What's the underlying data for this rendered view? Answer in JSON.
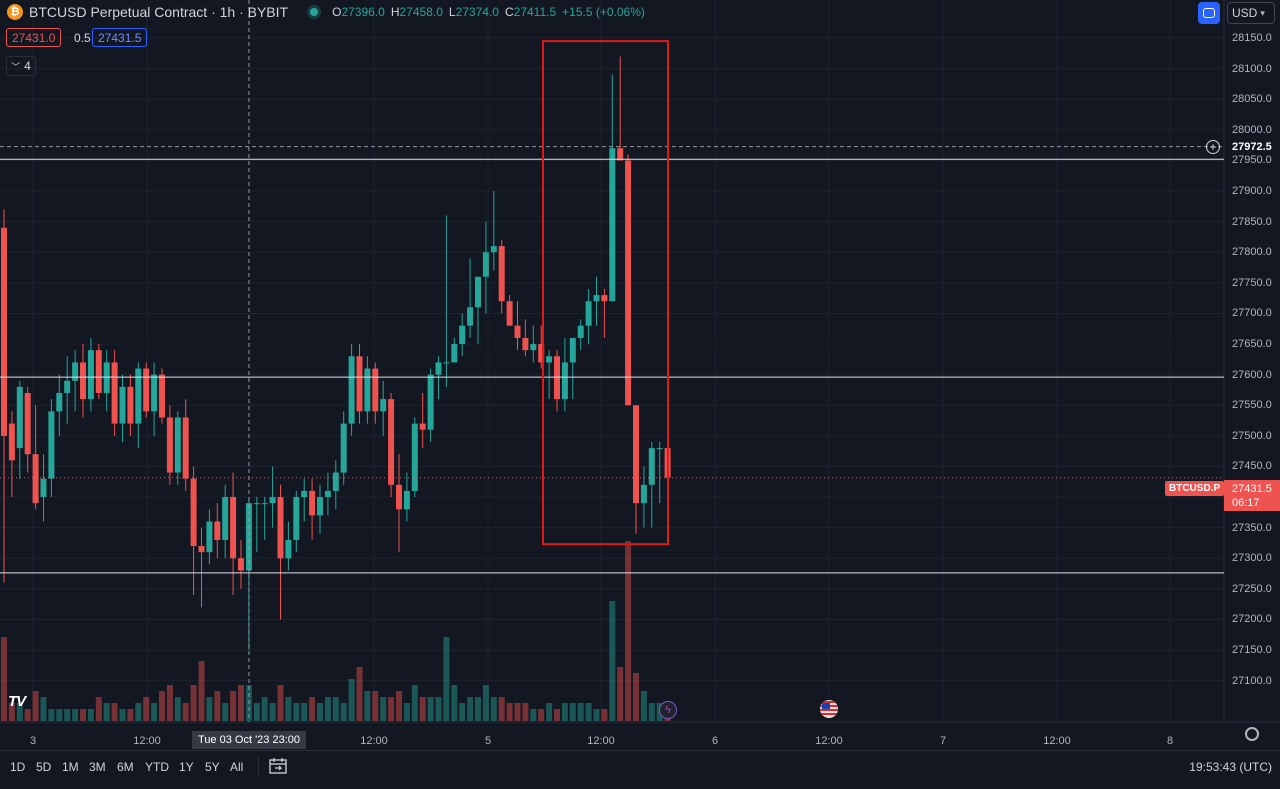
{
  "header": {
    "title": "BTCUSD Perpetual Contract · 1h · BYBIT",
    "ohlc": [
      {
        "k": "O",
        "v": "27396.0"
      },
      {
        "k": "H",
        "v": "27458.0"
      },
      {
        "k": "L",
        "v": "27374.0"
      },
      {
        "k": "C",
        "v": "27411.5"
      },
      {
        "k": "",
        "v": "+15.5 (+0.06%)"
      }
    ]
  },
  "trade": {
    "sell": "27431.0",
    "spread": "0.5",
    "buy": "27431.5"
  },
  "indicators_toggle": {
    "count": "4"
  },
  "currency": "USD",
  "price_axis": {
    "labels": [
      "28150.0",
      "28100.0",
      "28050.0",
      "28000.0",
      "27950.0",
      "27900.0",
      "27850.0",
      "27800.0",
      "27750.0",
      "27700.0",
      "27650.0",
      "27600.0",
      "27550.0",
      "27500.0",
      "27450.0",
      "27400.0",
      "27350.0",
      "27300.0",
      "27250.0",
      "27200.0",
      "27150.0",
      "27100.0"
    ]
  },
  "crosshair_price": "27972.5",
  "current_price": {
    "symbol": "BTCUSD.P",
    "price": "27431.5",
    "countdown": "06:17"
  },
  "time_axis": [
    {
      "label": "3",
      "hl": false
    },
    {
      "label": "12:00",
      "hl": false
    },
    {
      "label": "Tue 03 Oct '23   23:00",
      "hl": true
    },
    {
      "label": "12:00",
      "hl": false
    },
    {
      "label": "5",
      "hl": false
    },
    {
      "label": "12:00",
      "hl": false
    },
    {
      "label": "6",
      "hl": false
    },
    {
      "label": "12:00",
      "hl": false
    },
    {
      "label": "7",
      "hl": false
    },
    {
      "label": "12:00",
      "hl": false
    },
    {
      "label": "8",
      "hl": false
    }
  ],
  "ranges": [
    "1D",
    "5D",
    "1M",
    "3M",
    "6M",
    "YTD",
    "1Y",
    "5Y",
    "All"
  ],
  "clock": "19:53:43 (UTC)",
  "colors": {
    "up": "#26a69a",
    "down": "#ef5350",
    "bg": "#131722",
    "highlight_box": "#e01919"
  },
  "chart_data": {
    "type": "candlestick",
    "title": "BTCUSD Perpetual Contract · 1h · BYBIT",
    "ylim": [
      27070,
      28180
    ],
    "grid": true,
    "horizontal_lines": [
      27952,
      27596,
      27276
    ],
    "crosshair_price": 27972.5,
    "last_price": 27431.5,
    "highlight_range": {
      "price_top": 28145,
      "price_bottom": 27323
    },
    "candles": [
      [
        27840,
        27870,
        27260,
        27500,
        0.14
      ],
      [
        27520,
        27540,
        27400,
        27460,
        0.03
      ],
      [
        27480,
        27590,
        27430,
        27580,
        0.03
      ],
      [
        27570,
        27580,
        27440,
        27470,
        0.02
      ],
      [
        27470,
        27550,
        27380,
        27390,
        0.05
      ],
      [
        27400,
        27470,
        27360,
        27430,
        0.04
      ],
      [
        27430,
        27560,
        27400,
        27540,
        0.02
      ],
      [
        27540,
        27600,
        27500,
        27570,
        0.02
      ],
      [
        27570,
        27630,
        27520,
        27590,
        0.02
      ],
      [
        27590,
        27640,
        27540,
        27620,
        0.02
      ],
      [
        27620,
        27650,
        27530,
        27560,
        0.02
      ],
      [
        27560,
        27660,
        27540,
        27640,
        0.02
      ],
      [
        27640,
        27650,
        27560,
        27570,
        0.04
      ],
      [
        27570,
        27640,
        27540,
        27620,
        0.03
      ],
      [
        27620,
        27640,
        27500,
        27520,
        0.03
      ],
      [
        27520,
        27600,
        27490,
        27580,
        0.02
      ],
      [
        27580,
        27600,
        27500,
        27520,
        0.02
      ],
      [
        27520,
        27620,
        27480,
        27610,
        0.03
      ],
      [
        27610,
        27620,
        27530,
        27540,
        0.04
      ],
      [
        27540,
        27620,
        27500,
        27600,
        0.03
      ],
      [
        27600,
        27610,
        27520,
        27530,
        0.05
      ],
      [
        27530,
        27550,
        27420,
        27440,
        0.06
      ],
      [
        27440,
        27540,
        27420,
        27530,
        0.04
      ],
      [
        27530,
        27560,
        27410,
        27430,
        0.03
      ],
      [
        27430,
        27450,
        27240,
        27320,
        0.06
      ],
      [
        27320,
        27350,
        27220,
        27310,
        0.1
      ],
      [
        27310,
        27380,
        27290,
        27360,
        0.04
      ],
      [
        27360,
        27390,
        27300,
        27330,
        0.05
      ],
      [
        27330,
        27420,
        27300,
        27400,
        0.03
      ],
      [
        27400,
        27440,
        27240,
        27300,
        0.05
      ],
      [
        27300,
        27330,
        27250,
        27280,
        0.06
      ],
      [
        27280,
        27400,
        27150,
        27390,
        0.06
      ],
      [
        27390,
        27400,
        27310,
        27390,
        0.03
      ],
      [
        27390,
        27400,
        27330,
        27390,
        0.04
      ],
      [
        27390,
        27450,
        27350,
        27400,
        0.03
      ],
      [
        27400,
        27420,
        27200,
        27300,
        0.06
      ],
      [
        27300,
        27360,
        27280,
        27330,
        0.04
      ],
      [
        27330,
        27410,
        27310,
        27400,
        0.03
      ],
      [
        27400,
        27430,
        27360,
        27410,
        0.03
      ],
      [
        27410,
        27430,
        27330,
        27370,
        0.04
      ],
      [
        27370,
        27420,
        27340,
        27400,
        0.03
      ],
      [
        27400,
        27440,
        27370,
        27410,
        0.04
      ],
      [
        27410,
        27460,
        27380,
        27440,
        0.04
      ],
      [
        27440,
        27540,
        27420,
        27520,
        0.03
      ],
      [
        27520,
        27650,
        27500,
        27630,
        0.07
      ],
      [
        27630,
        27650,
        27520,
        27540,
        0.09
      ],
      [
        27540,
        27630,
        27520,
        27610,
        0.05
      ],
      [
        27610,
        27620,
        27520,
        27540,
        0.05
      ],
      [
        27540,
        27590,
        27500,
        27560,
        0.04
      ],
      [
        27560,
        27570,
        27400,
        27420,
        0.04
      ],
      [
        27420,
        27470,
        27310,
        27380,
        0.05
      ],
      [
        27380,
        27440,
        27360,
        27410,
        0.03
      ],
      [
        27410,
        27530,
        27400,
        27520,
        0.06
      ],
      [
        27520,
        27570,
        27480,
        27510,
        0.04
      ],
      [
        27510,
        27610,
        27490,
        27600,
        0.04
      ],
      [
        27600,
        27630,
        27560,
        27620,
        0.04
      ],
      [
        27620,
        27860,
        27580,
        27620,
        0.14
      ],
      [
        27620,
        27660,
        27620,
        27650,
        0.06
      ],
      [
        27650,
        27700,
        27630,
        27680,
        0.03
      ],
      [
        27680,
        27790,
        27660,
        27710,
        0.04
      ],
      [
        27710,
        27760,
        27650,
        27760,
        0.04
      ],
      [
        27760,
        27850,
        27700,
        27800,
        0.06
      ],
      [
        27800,
        27900,
        27770,
        27810,
        0.04
      ],
      [
        27810,
        27820,
        27700,
        27720,
        0.04
      ],
      [
        27720,
        27730,
        27680,
        27680,
        0.03
      ],
      [
        27680,
        27720,
        27640,
        27660,
        0.03
      ],
      [
        27660,
        27690,
        27630,
        27640,
        0.03
      ],
      [
        27640,
        27680,
        27620,
        27650,
        0.02
      ],
      [
        27650,
        27680,
        27610,
        27620,
        0.02
      ],
      [
        27620,
        27640,
        27560,
        27630,
        0.03
      ],
      [
        27630,
        27640,
        27540,
        27560,
        0.02
      ],
      [
        27560,
        27660,
        27540,
        27620,
        0.03
      ],
      [
        27620,
        27660,
        27560,
        27660,
        0.03
      ],
      [
        27660,
        27690,
        27640,
        27680,
        0.03
      ],
      [
        27680,
        27740,
        27650,
        27720,
        0.03
      ],
      [
        27720,
        27760,
        27680,
        27730,
        0.02
      ],
      [
        27730,
        27740,
        27660,
        27720,
        0.02
      ],
      [
        27720,
        28090,
        27720,
        27970,
        0.2
      ],
      [
        27970,
        28120,
        27960,
        27950,
        0.09
      ],
      [
        27950,
        27960,
        27550,
        27550,
        0.3
      ],
      [
        27550,
        27550,
        27340,
        27390,
        0.08
      ],
      [
        27390,
        27450,
        27350,
        27420,
        0.05
      ],
      [
        27420,
        27490,
        27350,
        27480,
        0.03
      ],
      [
        27480,
        27490,
        27390,
        27480,
        0.03
      ],
      [
        27480,
        27490,
        27410,
        27431.5,
        0.02
      ]
    ]
  }
}
